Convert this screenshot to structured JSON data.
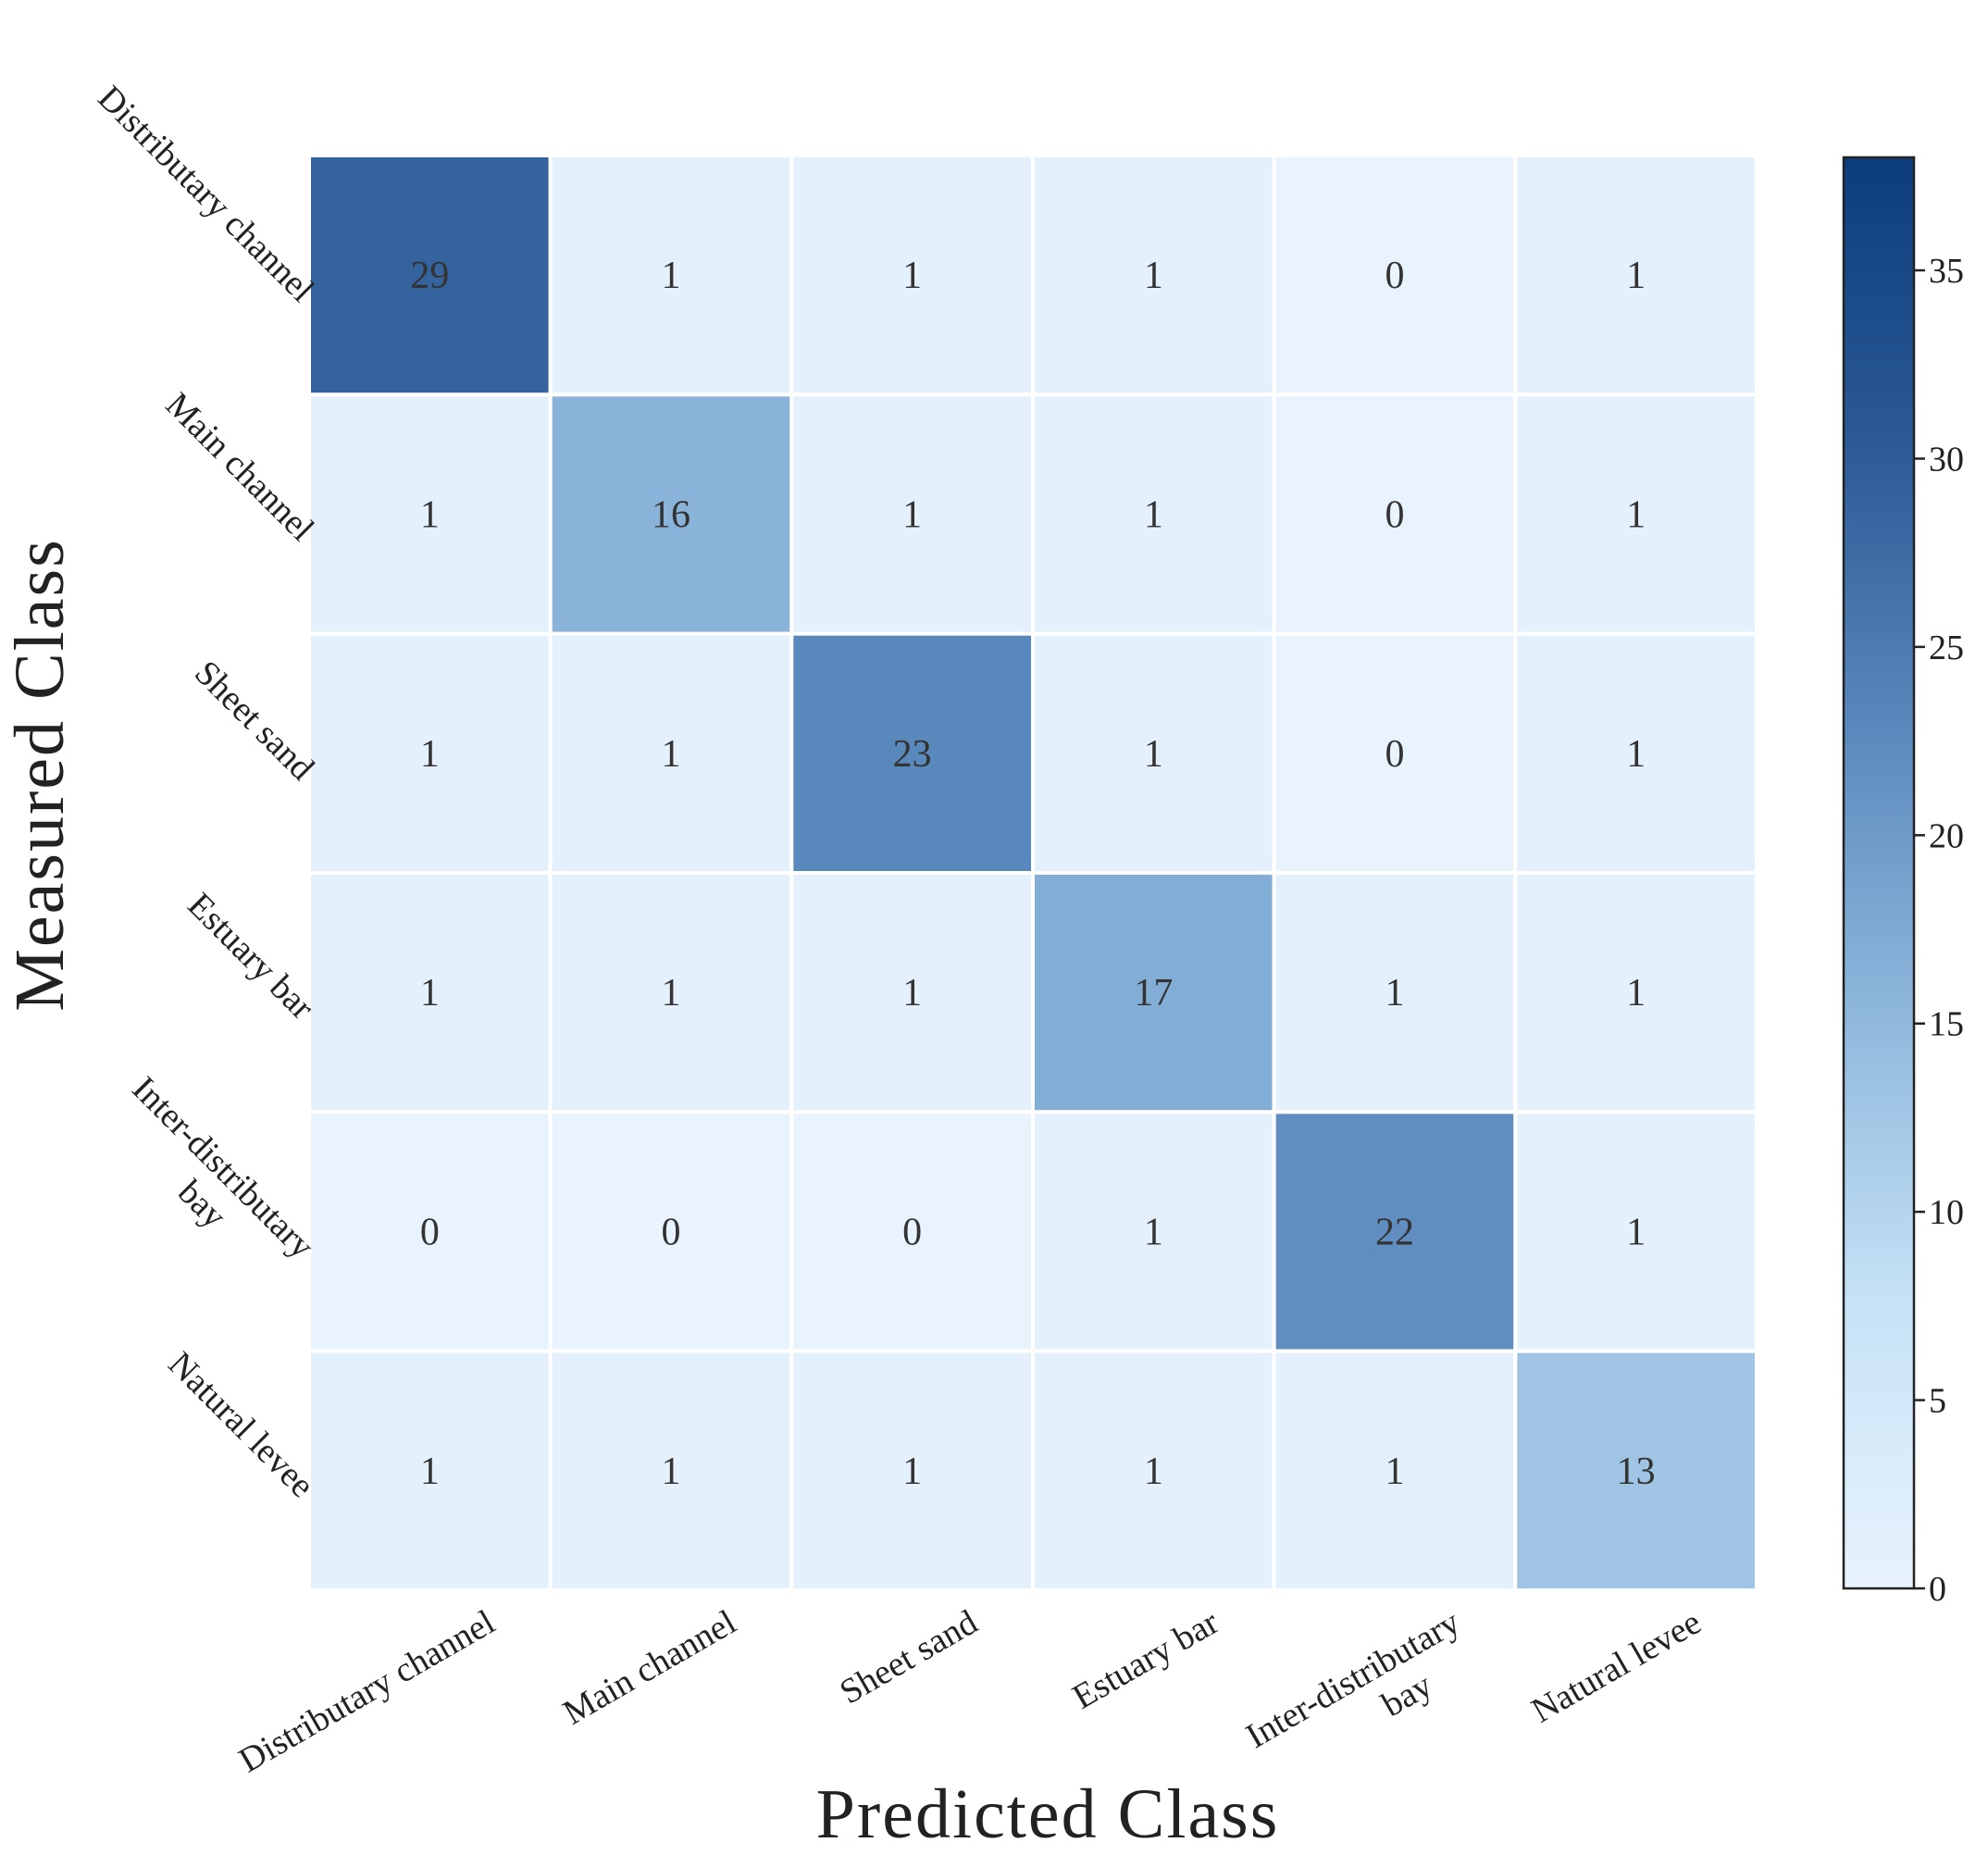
{
  "chart_data": {
    "type": "heatmap",
    "title": "",
    "xlabel": "Predicted Class",
    "ylabel": "Measured Class",
    "x_categories": [
      [
        "Distributary channel"
      ],
      [
        "Main channel"
      ],
      [
        "Sheet sand"
      ],
      [
        "Estuary bar"
      ],
      [
        "Inter-distributary",
        "bay"
      ],
      [
        "Natural levee"
      ]
    ],
    "y_categories": [
      [
        "Distributary channel"
      ],
      [
        "Main channel"
      ],
      [
        "Sheet sand"
      ],
      [
        "Estuary bar"
      ],
      [
        "Inter-distributary",
        "bay"
      ],
      [
        "Natural levee"
      ]
    ],
    "matrix": [
      [
        29,
        1,
        1,
        1,
        0,
        1
      ],
      [
        1,
        16,
        1,
        1,
        0,
        1
      ],
      [
        1,
        1,
        23,
        1,
        0,
        1
      ],
      [
        1,
        1,
        1,
        17,
        1,
        1
      ],
      [
        0,
        0,
        0,
        1,
        22,
        1
      ],
      [
        1,
        1,
        1,
        1,
        1,
        13
      ]
    ],
    "colorbar": {
      "min": 0,
      "max": 38,
      "ticks": [
        0,
        5,
        10,
        15,
        20,
        25,
        30,
        35
      ],
      "colormap": [
        "#e8f3fd",
        "#c6e2f6",
        "#8fb8dc",
        "#5a89bd",
        "#2b5a96",
        "#0c3c7c"
      ]
    }
  }
}
